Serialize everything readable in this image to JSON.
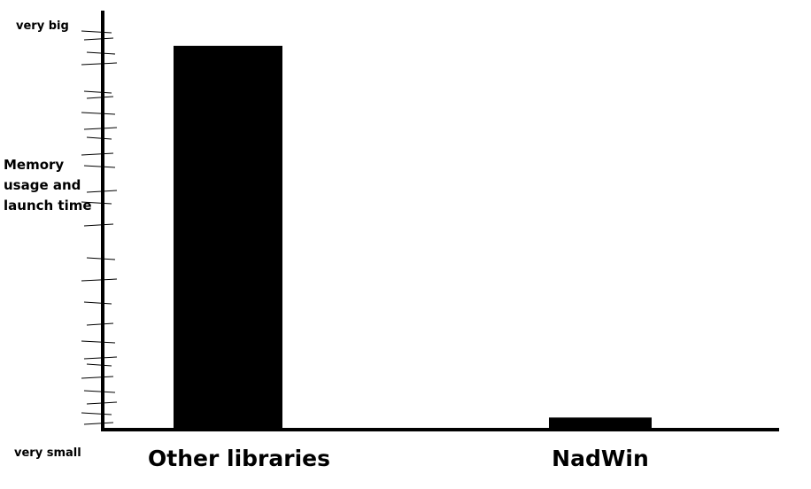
{
  "chart_data": {
    "type": "bar",
    "categories": [
      "Other libraries",
      "NadWin"
    ],
    "values": [
      95,
      3
    ],
    "ylim": [
      0,
      100
    ],
    "ylabel_lines": [
      "Memory",
      "usage and",
      "launch time"
    ],
    "y_top_label": "very big",
    "y_bottom_label": "very small",
    "grid": false,
    "bar_color": "#000000",
    "axis_color": "#000000"
  }
}
